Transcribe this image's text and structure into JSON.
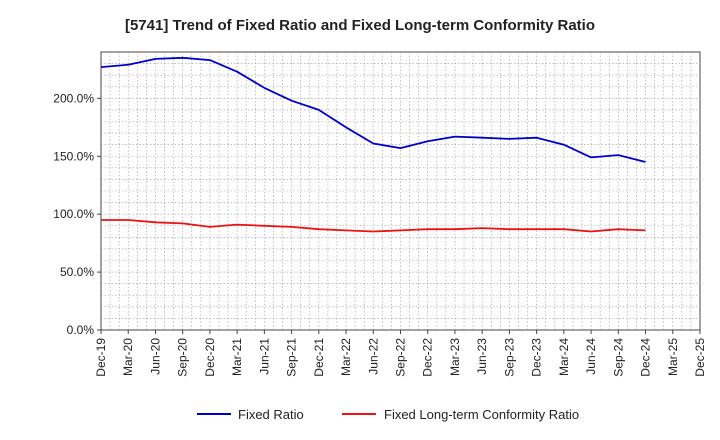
{
  "chart_data": {
    "type": "line",
    "title": "[5741]  Trend of Fixed Ratio and Fixed Long-term Conformity Ratio",
    "xlabel": "",
    "ylabel": "",
    "ylim": [
      0,
      240
    ],
    "yticks": [
      0,
      50,
      100,
      150,
      200
    ],
    "ytick_labels": [
      "0.0%",
      "50.0%",
      "100.0%",
      "150.0%",
      "200.0%"
    ],
    "x_tick_labels": [
      "Dec-19",
      "Mar-20",
      "Jun-20",
      "Sep-20",
      "Dec-20",
      "Mar-21",
      "Jun-21",
      "Sep-21",
      "Dec-21",
      "Mar-22",
      "Jun-22",
      "Sep-22",
      "Dec-22",
      "Mar-23",
      "Jun-23",
      "Sep-23",
      "Dec-23",
      "Mar-24",
      "Jun-24",
      "Sep-24",
      "Dec-24",
      "Mar-25",
      "Dec-25"
    ],
    "grid": true,
    "legend_position": "bottom",
    "series": [
      {
        "name": "Fixed Ratio",
        "color": "#0000cc",
        "values": [
          227,
          229,
          234,
          235,
          233,
          223,
          209,
          198,
          190,
          175,
          161,
          157,
          163,
          167,
          166,
          165,
          166,
          160,
          149,
          151,
          145
        ]
      },
      {
        "name": "Fixed Long-term Conformity Ratio",
        "color": "#ee1111",
        "values": [
          95,
          95,
          93,
          92,
          89,
          91,
          90,
          89,
          87,
          86,
          85,
          86,
          87,
          87,
          88,
          87,
          87,
          87,
          85,
          87,
          86
        ]
      }
    ]
  }
}
